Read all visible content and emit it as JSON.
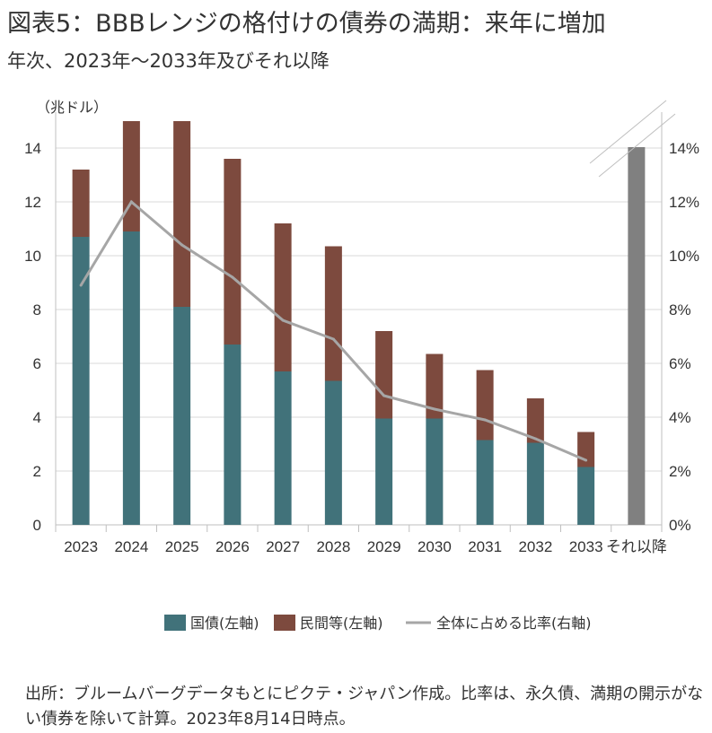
{
  "header": {
    "title": "図表5：BBBレンジの格付けの債券の満期：来年に増加",
    "subtitle": "年次、2023年～2033年及びそれ以降"
  },
  "chart_data": {
    "type": "bar",
    "stacked": true,
    "unit_left": "（兆ドル）",
    "categories": [
      "2023",
      "2024",
      "2025",
      "2026",
      "2027",
      "2028",
      "2029",
      "2030",
      "2031",
      "2032",
      "2033",
      "それ以降"
    ],
    "series": [
      {
        "name": "国債(左軸)",
        "type": "bar",
        "axis": "left",
        "color": "#41727A",
        "values": [
          10.7,
          10.9,
          8.1,
          6.7,
          5.7,
          5.35,
          3.95,
          3.95,
          3.15,
          3.05,
          2.15,
          null
        ]
      },
      {
        "name": "民間等(左軸)",
        "type": "bar",
        "axis": "left",
        "color": "#7D4A3E",
        "values": [
          2.5,
          4.1,
          6.9,
          6.9,
          5.5,
          5.0,
          3.25,
          2.4,
          2.6,
          1.65,
          1.3,
          null
        ]
      },
      {
        "name": "全体に占める比率(右軸)",
        "type": "line",
        "axis": "right",
        "color": "#A6A6A6",
        "values": [
          8.9,
          12.0,
          10.4,
          9.2,
          7.6,
          6.9,
          4.8,
          4.3,
          3.9,
          3.2,
          2.4,
          null
        ]
      }
    ],
    "beyond_bar": {
      "category": "それ以降",
      "color": "#808080",
      "value_right": 14.0,
      "axis_break": true
    },
    "yaxis_left": {
      "ylim": [
        0,
        15
      ],
      "ticks": [
        "0",
        "2",
        "4",
        "6",
        "8",
        "10",
        "12",
        "14"
      ]
    },
    "yaxis_right": {
      "ylim": [
        0,
        15
      ],
      "ticks": [
        "0%",
        "2%",
        "4%",
        "6%",
        "8%",
        "10%",
        "12%",
        "14%"
      ]
    },
    "grid": true,
    "legend_position": "bottom"
  },
  "footer": {
    "note": "出所：ブルームバーグデータもとにピクテ・ジャパン作成。比率は、永久債、満期の開示がない債券を除いて計算。2023年8月14日時点。"
  }
}
